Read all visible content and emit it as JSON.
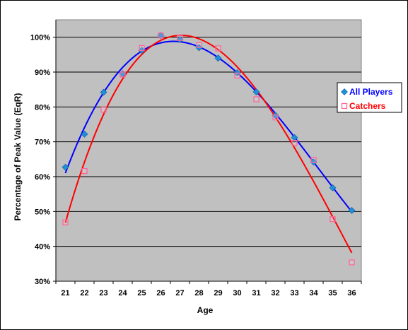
{
  "chart_data": {
    "type": "scatter",
    "title": "",
    "xlabel": "Age",
    "ylabel": "Percentage of Peak Value (EqR)",
    "x": [
      21,
      22,
      23,
      24,
      25,
      26,
      27,
      28,
      29,
      30,
      31,
      32,
      33,
      34,
      35,
      36
    ],
    "xlim": [
      20.5,
      36.5
    ],
    "ylim": [
      0.3,
      1.05
    ],
    "yticks": [
      0.3,
      0.4,
      0.5,
      0.6,
      0.7,
      0.8,
      0.9,
      1.0
    ],
    "ytick_labels": [
      "30%",
      "40%",
      "50%",
      "60%",
      "70%",
      "80%",
      "90%",
      "100%"
    ],
    "xtick_labels": [
      "21",
      "22",
      "23",
      "24",
      "25",
      "26",
      "27",
      "28",
      "29",
      "30",
      "31",
      "32",
      "33",
      "34",
      "35",
      "36"
    ],
    "grid": true,
    "legend_position": "right",
    "series": [
      {
        "name": "All Players",
        "marker": "diamond",
        "color": "#1f8fdc",
        "trend_color": "#0000ff",
        "values": [
          0.627,
          0.722,
          0.842,
          0.895,
          0.962,
          1.005,
          0.993,
          0.97,
          0.94,
          0.898,
          0.843,
          0.776,
          0.712,
          0.642,
          0.568,
          0.503
        ]
      },
      {
        "name": "Catchers",
        "marker": "square",
        "color": "#ff6699",
        "trend_color": "#ff0000",
        "values": [
          0.469,
          0.616,
          0.792,
          0.893,
          0.969,
          1.005,
          0.998,
          0.978,
          0.968,
          0.89,
          0.822,
          0.77,
          0.697,
          0.648,
          0.478,
          0.354
        ]
      }
    ]
  },
  "colors": {
    "plot_background": "#c0c0c0",
    "grid_line": "#000000",
    "chart_border": "#000000"
  }
}
